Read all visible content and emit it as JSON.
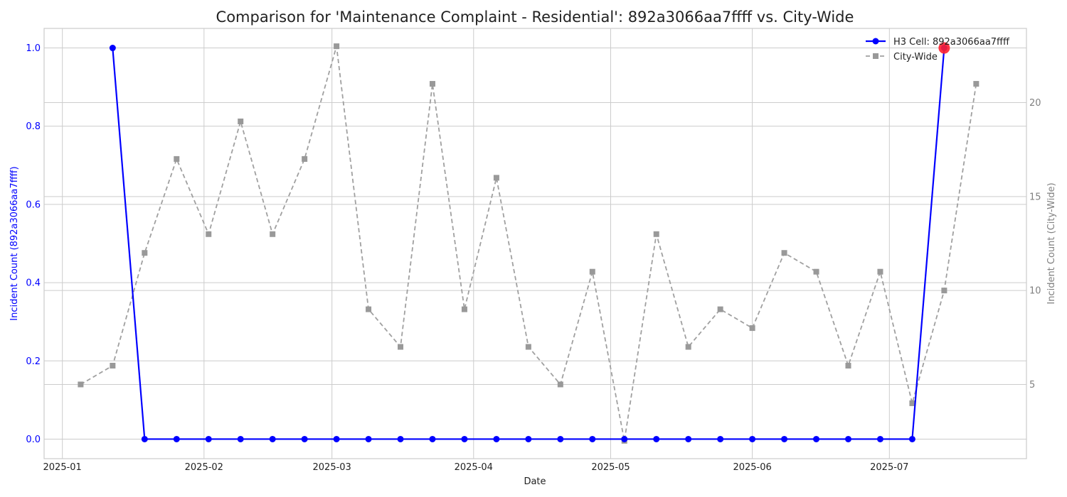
{
  "chart_data": {
    "type": "line",
    "title": "Comparison for 'Maintenance Complaint - Residential': 892a3066aa7ffff vs. City-Wide",
    "xlabel": "Date",
    "ylabel_left": "Incident Count (892a3066aa7ffff)",
    "ylabel_right": "Incident Count (City-Wide)",
    "x_ticks": [
      "2025-01",
      "2025-02",
      "2025-03",
      "2025-04",
      "2025-05",
      "2025-06",
      "2025-07"
    ],
    "x_tick_dates": [
      "2025-01-01",
      "2025-02-01",
      "2025-03-01",
      "2025-04-01",
      "2025-05-01",
      "2025-06-01",
      "2025-07-01"
    ],
    "xlim": [
      "2024-12-28",
      "2025-07-31"
    ],
    "y_left_ticks": [
      "0.0",
      "0.2",
      "0.4",
      "0.6",
      "0.8",
      "1.0"
    ],
    "y_left_lim": [
      -0.05,
      1.05
    ],
    "y_right_ticks": [
      "5",
      "10",
      "15",
      "20"
    ],
    "y_right_lim": [
      1.05,
      23.95
    ],
    "grid": true,
    "legend_position": "top-right",
    "left_axis_color": "#0000ff",
    "right_axis_color": "#808080",
    "series": [
      {
        "name": "H3 Cell: 892a3066aa7ffff",
        "axis": "left",
        "color": "#0000ff",
        "style": "solid",
        "marker": "circle",
        "x": [
          "2025-01-12",
          "2025-01-19",
          "2025-01-26",
          "2025-02-02",
          "2025-02-09",
          "2025-02-16",
          "2025-02-23",
          "2025-03-02",
          "2025-03-09",
          "2025-03-16",
          "2025-03-23",
          "2025-03-30",
          "2025-04-06",
          "2025-04-13",
          "2025-04-20",
          "2025-04-27",
          "2025-05-04",
          "2025-05-11",
          "2025-05-18",
          "2025-05-25",
          "2025-06-01",
          "2025-06-08",
          "2025-06-15",
          "2025-06-22",
          "2025-06-29",
          "2025-07-06",
          "2025-07-13"
        ],
        "values": [
          1,
          0,
          0,
          0,
          0,
          0,
          0,
          0,
          0,
          0,
          0,
          0,
          0,
          0,
          0,
          0,
          0,
          0,
          0,
          0,
          0,
          0,
          0,
          0,
          0,
          0,
          1
        ]
      },
      {
        "name": "City-Wide",
        "axis": "right",
        "color": "#a0a0a0",
        "style": "dashed",
        "marker": "square",
        "x": [
          "2025-01-05",
          "2025-01-12",
          "2025-01-19",
          "2025-01-26",
          "2025-02-02",
          "2025-02-09",
          "2025-02-16",
          "2025-02-23",
          "2025-03-02",
          "2025-03-09",
          "2025-03-16",
          "2025-03-23",
          "2025-03-30",
          "2025-04-06",
          "2025-04-13",
          "2025-04-20",
          "2025-04-27",
          "2025-05-04",
          "2025-05-11",
          "2025-05-18",
          "2025-05-25",
          "2025-06-01",
          "2025-06-08",
          "2025-06-15",
          "2025-06-22",
          "2025-06-29",
          "2025-07-06",
          "2025-07-13",
          "2025-07-20"
        ],
        "values": [
          5,
          6,
          12,
          17,
          13,
          19,
          13,
          17,
          23,
          9,
          7,
          21,
          9,
          16,
          7,
          5,
          11,
          2,
          13,
          7,
          9,
          8,
          12,
          11,
          6,
          11,
          4,
          10,
          21
        ]
      }
    ],
    "highlight": {
      "x": "2025-07-13",
      "value": 1,
      "axis": "left",
      "color": "#ff2030"
    }
  }
}
